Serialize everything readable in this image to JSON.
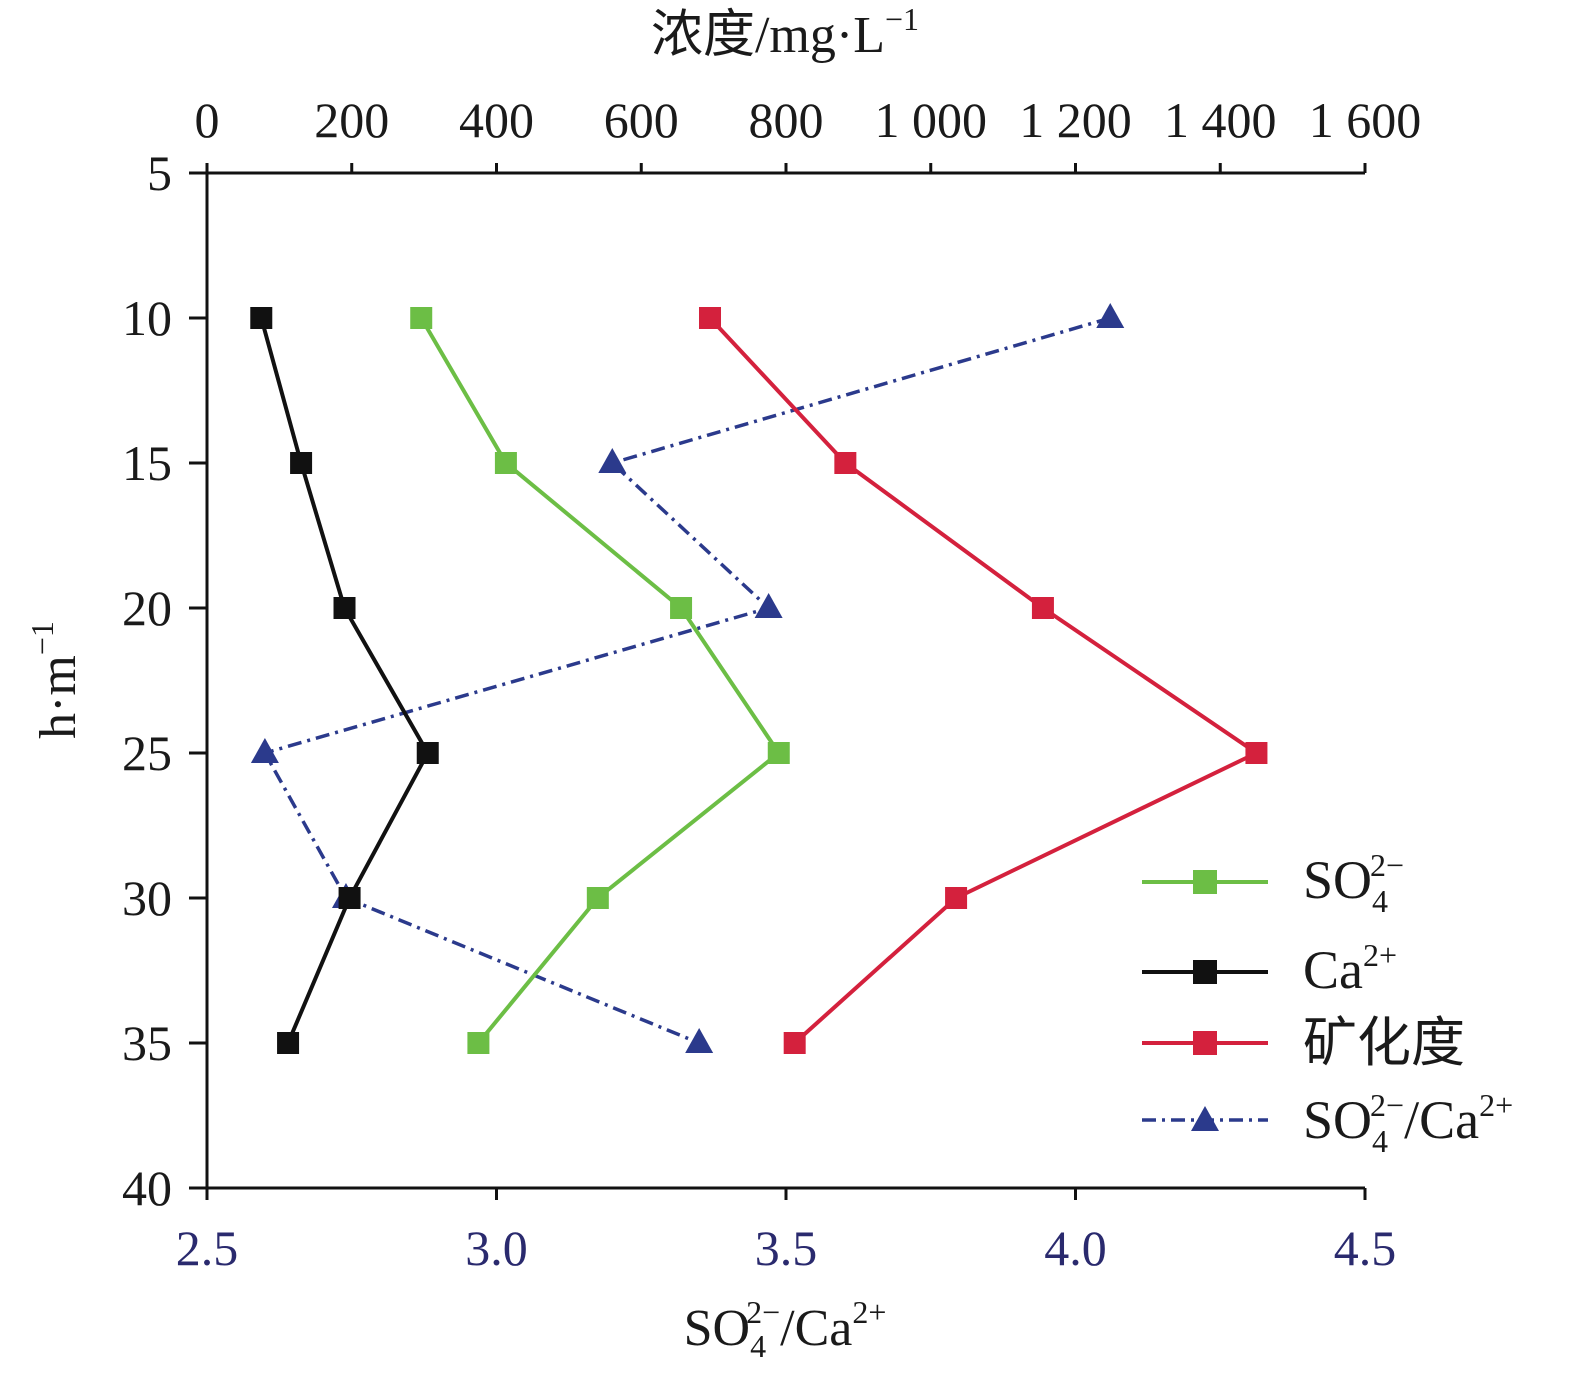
{
  "chart_data": {
    "type": "line",
    "y_axis": {
      "label_main": "h·m",
      "label_sup": "−1",
      "range": [
        5,
        40
      ],
      "inverted": true,
      "ticks": [
        "5",
        "10",
        "15",
        "20",
        "25",
        "30",
        "35",
        "40"
      ]
    },
    "x_axis_top": {
      "label_main": "浓度/mg·L",
      "label_sup": "−1",
      "range": [
        0,
        1600
      ],
      "ticks": [
        "0",
        "200",
        "400",
        "600",
        "800",
        "1 000",
        "1 200",
        "1 400",
        "1 600"
      ]
    },
    "x_axis_bottom": {
      "label_base": "SO",
      "label_sub": "4",
      "label_sup1": "2−",
      "label_mid": "/Ca",
      "label_sup2": "2+",
      "range": [
        2.5,
        4.5
      ],
      "ticks": [
        "2.5",
        "3.0",
        "3.5",
        "4.0",
        "4.5"
      ]
    },
    "depths": [
      10,
      15,
      20,
      25,
      30,
      35
    ],
    "series": [
      {
        "key": "so4",
        "name_base": "SO",
        "name_sub": "4",
        "name_sup": "2−",
        "axis": "top",
        "color": "#6cbe45",
        "marker": "square",
        "line_style": "solid",
        "values": [
          296,
          413,
          655,
          790,
          540,
          375
        ]
      },
      {
        "key": "ca",
        "name_base": "Ca",
        "name_sup": "2+",
        "axis": "top",
        "color": "#111111",
        "marker": "square",
        "line_style": "solid",
        "values": [
          75,
          130,
          190,
          305,
          197,
          112
        ]
      },
      {
        "key": "mineral",
        "name": "矿化度",
        "axis": "top",
        "color": "#d4213d",
        "marker": "square",
        "line_style": "solid",
        "values": [
          695,
          882,
          1155,
          1450,
          1035,
          812
        ]
      },
      {
        "key": "ratio",
        "name_base": "SO",
        "name_sub": "4",
        "name_sup": "2−",
        "name_mid": "/Ca",
        "name_sup2": "2+",
        "axis": "bottom",
        "color": "#2b3a8c",
        "marker": "triangle",
        "line_style": "dashdot",
        "values": [
          4.06,
          3.2,
          3.47,
          2.6,
          2.74,
          3.35
        ]
      }
    ],
    "legend_position": "bottom-right"
  }
}
